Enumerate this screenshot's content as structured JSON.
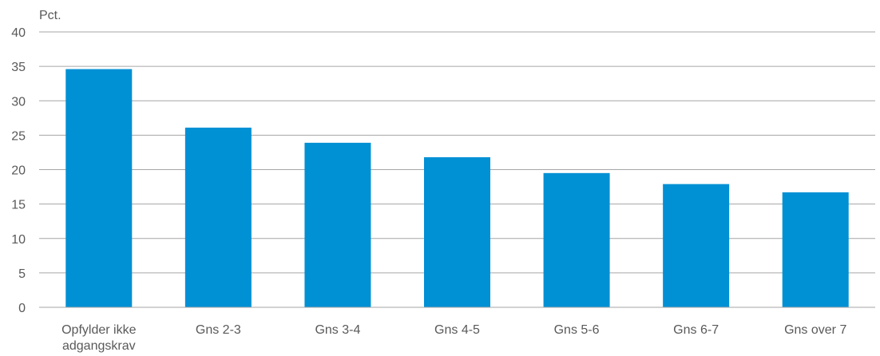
{
  "chart_data": {
    "type": "bar",
    "ylabel": "Pct.",
    "categories": [
      [
        "Opfylder ikke",
        "adgangskrav"
      ],
      [
        "Gns 2-3"
      ],
      [
        "Gns 3-4"
      ],
      [
        "Gns 4-5"
      ],
      [
        "Gns 5-6"
      ],
      [
        "Gns 6-7"
      ],
      [
        "Gns over 7"
      ]
    ],
    "values": [
      34.6,
      26.1,
      23.9,
      21.8,
      19.5,
      17.9,
      16.7
    ],
    "ylim": [
      0,
      40
    ],
    "yticks": [
      0,
      5,
      10,
      15,
      20,
      25,
      30,
      35,
      40
    ],
    "grid": true,
    "colors": {
      "bar": "#0090D4",
      "grid": "#A6A6A6",
      "text": "#595959"
    }
  }
}
